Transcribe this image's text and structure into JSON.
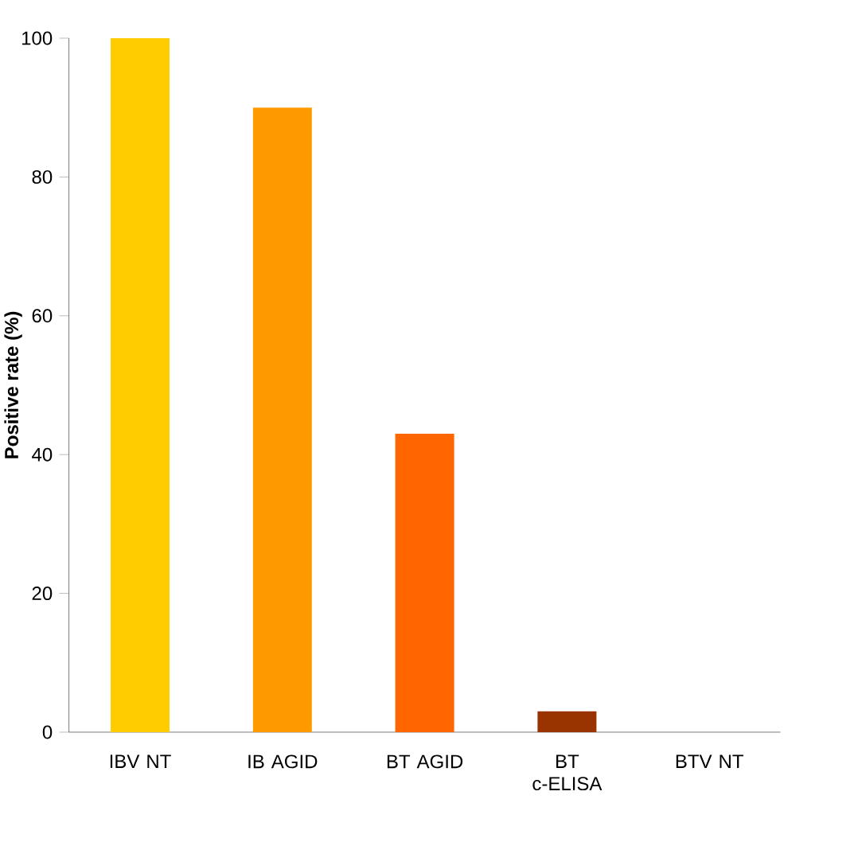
{
  "chart_data": {
    "type": "bar",
    "ylabel": "Positive rate (%)",
    "categories": [
      "IBV NT",
      "IB AGID",
      "BT AGID",
      "BT c-ELISA",
      "BTV NT"
    ],
    "values": [
      100,
      90,
      43,
      3,
      0
    ],
    "colors": [
      "#ffcc00",
      "#ff9900",
      "#ff6600",
      "#993300",
      "#993300"
    ],
    "ylim": [
      0,
      100
    ],
    "yticks": [
      0,
      20,
      40,
      60,
      80,
      100
    ]
  }
}
